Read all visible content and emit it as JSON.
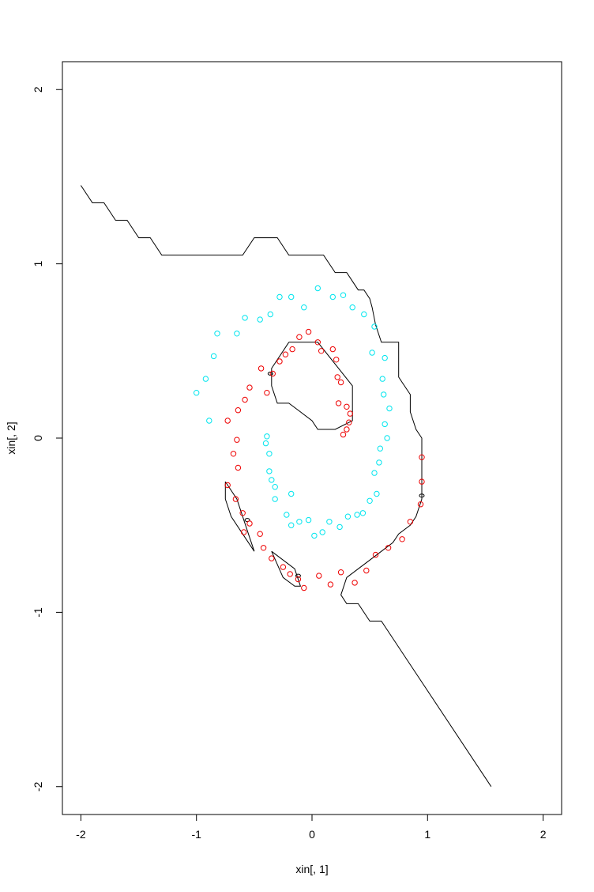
{
  "chart_data": {
    "type": "scatter",
    "title": "",
    "xlabel": "xin[, 1]",
    "ylabel": "xin[, 2]",
    "xlim": [
      -2.16,
      2.16
    ],
    "ylim": [
      -2.16,
      2.16
    ],
    "xticks": [
      -2,
      -1,
      0,
      1,
      2
    ],
    "yticks": [
      -2,
      -1,
      0,
      1,
      2
    ],
    "xtick_labels": [
      "-2",
      "-1",
      "0",
      "1",
      "2"
    ],
    "ytick_labels": [
      "-2",
      "-1",
      "0",
      "1",
      "2"
    ],
    "grid": false,
    "legend": "none",
    "series": [
      {
        "color": "#00e5ee",
        "marker": "open-circle",
        "points": [
          [
            0.05,
            0.86
          ],
          [
            0.18,
            0.81
          ],
          [
            0.27,
            0.82
          ],
          [
            -0.18,
            0.81
          ],
          [
            -0.28,
            0.81
          ],
          [
            0.35,
            0.75
          ],
          [
            -0.07,
            0.75
          ],
          [
            0.45,
            0.71
          ],
          [
            -0.36,
            0.71
          ],
          [
            -0.45,
            0.68
          ],
          [
            -0.58,
            0.69
          ],
          [
            0.54,
            0.64
          ],
          [
            -0.65,
            0.6
          ],
          [
            -0.82,
            0.6
          ],
          [
            0.52,
            0.49
          ],
          [
            0.63,
            0.46
          ],
          [
            -0.85,
            0.47
          ],
          [
            -0.92,
            0.34
          ],
          [
            0.61,
            0.34
          ],
          [
            0.62,
            0.25
          ],
          [
            -1.0,
            0.26
          ],
          [
            0.67,
            0.17
          ],
          [
            0.63,
            0.08
          ],
          [
            -0.89,
            0.1
          ],
          [
            0.65,
            0.0
          ],
          [
            -0.39,
            0.01
          ],
          [
            -0.4,
            -0.03
          ],
          [
            0.59,
            -0.06
          ],
          [
            -0.37,
            -0.09
          ],
          [
            0.58,
            -0.14
          ],
          [
            -0.37,
            -0.19
          ],
          [
            0.54,
            -0.2
          ],
          [
            -0.35,
            -0.24
          ],
          [
            -0.32,
            -0.28
          ],
          [
            0.56,
            -0.32
          ],
          [
            -0.18,
            -0.32
          ],
          [
            -0.32,
            -0.35
          ],
          [
            0.5,
            -0.36
          ],
          [
            0.44,
            -0.43
          ],
          [
            0.39,
            -0.44
          ],
          [
            -0.22,
            -0.44
          ],
          [
            0.31,
            -0.45
          ],
          [
            -0.11,
            -0.48
          ],
          [
            -0.03,
            -0.47
          ],
          [
            0.15,
            -0.48
          ],
          [
            -0.18,
            -0.5
          ],
          [
            0.24,
            -0.51
          ],
          [
            0.09,
            -0.54
          ],
          [
            0.02,
            -0.56
          ]
        ]
      },
      {
        "color": "#ee0000",
        "marker": "open-circle",
        "points": [
          [
            -0.03,
            0.61
          ],
          [
            -0.11,
            0.58
          ],
          [
            0.05,
            0.55
          ],
          [
            -0.17,
            0.51
          ],
          [
            0.18,
            0.51
          ],
          [
            -0.23,
            0.48
          ],
          [
            0.08,
            0.5
          ],
          [
            0.21,
            0.45
          ],
          [
            -0.28,
            0.44
          ],
          [
            -0.44,
            0.4
          ],
          [
            0.22,
            0.35
          ],
          [
            0.25,
            0.32
          ],
          [
            -0.54,
            0.29
          ],
          [
            -0.39,
            0.26
          ],
          [
            -0.34,
            0.37
          ],
          [
            0.3,
            0.18
          ],
          [
            0.23,
            0.2
          ],
          [
            -0.58,
            0.22
          ],
          [
            -0.64,
            0.16
          ],
          [
            0.33,
            0.14
          ],
          [
            -0.73,
            0.1
          ],
          [
            0.32,
            0.09
          ],
          [
            0.3,
            0.05
          ],
          [
            0.27,
            0.02
          ],
          [
            -0.65,
            -0.01
          ],
          [
            -0.68,
            -0.09
          ],
          [
            -0.64,
            -0.17
          ],
          [
            0.95,
            -0.11
          ],
          [
            0.95,
            -0.25
          ],
          [
            -0.73,
            -0.27
          ],
          [
            -0.66,
            -0.35
          ],
          [
            0.94,
            -0.38
          ],
          [
            -0.6,
            -0.43
          ],
          [
            -0.54,
            -0.49
          ],
          [
            0.85,
            -0.48
          ],
          [
            -0.45,
            -0.55
          ],
          [
            -0.59,
            -0.54
          ],
          [
            0.78,
            -0.58
          ],
          [
            0.66,
            -0.63
          ],
          [
            -0.42,
            -0.63
          ],
          [
            -0.35,
            -0.69
          ],
          [
            0.55,
            -0.67
          ],
          [
            -0.25,
            -0.74
          ],
          [
            -0.19,
            -0.78
          ],
          [
            0.06,
            -0.79
          ],
          [
            -0.12,
            -0.81
          ],
          [
            0.25,
            -0.77
          ],
          [
            0.47,
            -0.76
          ],
          [
            0.16,
            -0.84
          ],
          [
            0.37,
            -0.83
          ],
          [
            -0.07,
            -0.86
          ]
        ]
      }
    ],
    "contours": [
      {
        "color": "#000000",
        "points": [
          [
            -2.0,
            1.45
          ],
          [
            -1.9,
            1.35
          ],
          [
            -1.8,
            1.35
          ],
          [
            -1.7,
            1.25
          ],
          [
            -1.6,
            1.25
          ],
          [
            -1.5,
            1.15
          ],
          [
            -1.4,
            1.15
          ],
          [
            -1.3,
            1.05
          ],
          [
            -0.6,
            1.05
          ],
          [
            -0.5,
            1.15
          ],
          [
            -0.3,
            1.15
          ],
          [
            -0.2,
            1.05
          ],
          [
            0.1,
            1.05
          ],
          [
            0.2,
            0.95
          ],
          [
            0.3,
            0.95
          ],
          [
            0.35,
            0.9
          ],
          [
            0.4,
            0.85
          ],
          [
            0.45,
            0.85
          ],
          [
            0.5,
            0.8
          ],
          [
            0.52,
            0.75
          ],
          [
            0.55,
            0.65
          ],
          [
            0.6,
            0.55
          ],
          [
            0.75,
            0.55
          ],
          [
            0.75,
            0.35
          ],
          [
            0.85,
            0.25
          ],
          [
            0.85,
            0.15
          ],
          [
            0.9,
            0.05
          ],
          [
            0.95,
            0.0
          ],
          [
            0.95,
            -0.35
          ],
          [
            0.9,
            -0.45
          ],
          [
            0.85,
            -0.5
          ],
          [
            0.75,
            -0.55
          ],
          [
            0.7,
            -0.6
          ],
          [
            0.6,
            -0.65
          ],
          [
            0.5,
            -0.7
          ],
          [
            0.4,
            -0.75
          ],
          [
            0.3,
            -0.8
          ],
          [
            0.25,
            -0.9
          ],
          [
            0.3,
            -0.95
          ],
          [
            0.4,
            -0.95
          ],
          [
            0.5,
            -1.05
          ],
          [
            0.6,
            -1.05
          ],
          [
            0.7,
            -1.15
          ],
          [
            1.55,
            -2.0
          ]
        ]
      },
      {
        "color": "#000000",
        "points": [
          [
            -0.2,
            0.55
          ],
          [
            0.05,
            0.55
          ],
          [
            0.35,
            0.3
          ],
          [
            0.35,
            0.1
          ],
          [
            0.2,
            0.05
          ],
          [
            0.05,
            0.05
          ],
          [
            0.0,
            0.1
          ],
          [
            -0.1,
            0.15
          ],
          [
            -0.2,
            0.2
          ],
          [
            -0.3,
            0.2
          ],
          [
            -0.35,
            0.3
          ],
          [
            -0.35,
            0.4
          ],
          [
            -0.2,
            0.55
          ]
        ]
      },
      {
        "color": "#000000",
        "points": [
          [
            -0.75,
            -0.25
          ],
          [
            -0.65,
            -0.35
          ],
          [
            -0.55,
            -0.55
          ],
          [
            -0.5,
            -0.65
          ],
          [
            -0.6,
            -0.55
          ],
          [
            -0.7,
            -0.45
          ],
          [
            -0.75,
            -0.35
          ],
          [
            -0.75,
            -0.25
          ]
        ]
      },
      {
        "color": "#000000",
        "points": [
          [
            -0.35,
            -0.65
          ],
          [
            -0.15,
            -0.75
          ],
          [
            -0.1,
            -0.85
          ],
          [
            -0.15,
            -0.85
          ],
          [
            -0.25,
            -0.8
          ],
          [
            -0.35,
            -0.65
          ]
        ]
      }
    ],
    "small_loops": [
      [
        -0.36,
        0.37
      ],
      [
        -0.56,
        -0.47
      ],
      [
        -0.12,
        -0.79
      ],
      [
        0.95,
        -0.33
      ]
    ]
  }
}
